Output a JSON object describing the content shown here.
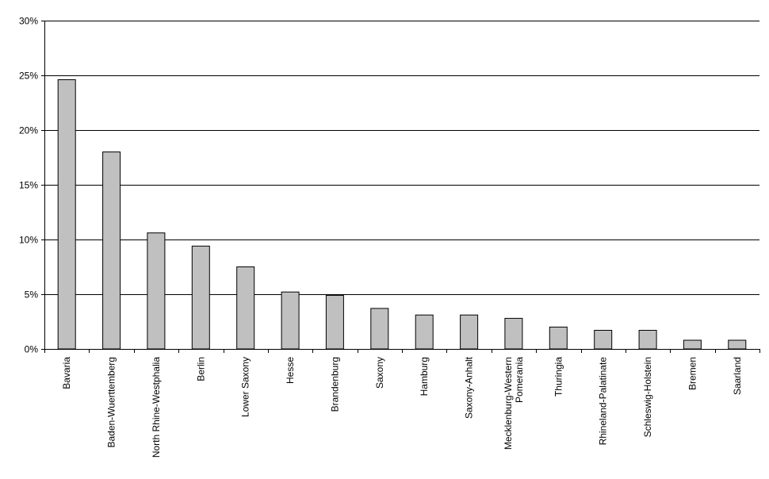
{
  "chart_data": {
    "type": "bar",
    "title": "",
    "xlabel": "",
    "ylabel": "",
    "ylim": [
      0,
      30
    ],
    "y_tick_values": [
      0,
      5,
      10,
      15,
      20,
      25,
      30
    ],
    "y_tick_labels": [
      "0%",
      "5%",
      "10%",
      "15%",
      "20%",
      "25%",
      "30%"
    ],
    "grid": true,
    "categories": [
      [
        "Bavaria"
      ],
      [
        "Baden-Wuerttemberg"
      ],
      [
        "North Rhine-Westphalia"
      ],
      [
        "Berlin"
      ],
      [
        "Lower Saxony"
      ],
      [
        "Hesse"
      ],
      [
        "Brandenburg"
      ],
      [
        "Saxony"
      ],
      [
        "Hamburg"
      ],
      [
        "Saxony-Anhalt"
      ],
      [
        "Mecklenburg-Western",
        "Pomerania"
      ],
      [
        "Thuringia"
      ],
      [
        "Rhineland-Palatinate"
      ],
      [
        "Schleswig-Holstein"
      ],
      [
        "Bremen"
      ],
      [
        "Saarland"
      ]
    ],
    "values": [
      24.6,
      18.0,
      10.6,
      9.4,
      7.5,
      5.2,
      4.9,
      3.7,
      3.1,
      3.1,
      2.8,
      2.0,
      1.7,
      1.7,
      0.8,
      0.8
    ],
    "colors": {
      "bar_fill": "#c0c0c0",
      "bar_stroke": "#000000",
      "grid": "#000000",
      "background": "#ffffff"
    }
  }
}
